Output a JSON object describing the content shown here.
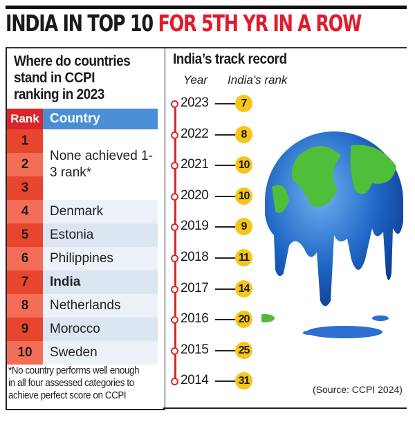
{
  "header": {
    "title_part1": "INDIA IN TOP 10",
    "title_part2": "FOR 5TH YR IN A ROW"
  },
  "left_panel": {
    "title": [
      "Where do countries",
      "stand in CCPI",
      "ranking in 2023"
    ],
    "columns": [
      "Rank",
      "Country"
    ],
    "none_note": "None achieved 1-3 rank*",
    "rows": [
      {
        "rank": "1"
      },
      {
        "rank": "2"
      },
      {
        "rank": "3"
      },
      {
        "rank": "4",
        "country": "Denmark"
      },
      {
        "rank": "5",
        "country": "Estonia"
      },
      {
        "rank": "6",
        "country": "Philippines"
      },
      {
        "rank": "7",
        "country": "India"
      },
      {
        "rank": "8",
        "country": "Netherlands"
      },
      {
        "rank": "9",
        "country": "Morocco"
      },
      {
        "rank": "10",
        "country": "Sweden"
      }
    ],
    "footnote": [
      "*No country performs well enough",
      "in all four assessed categories to",
      "achieve perfect score on CCPI"
    ]
  },
  "right_panel": {
    "title": "India’s track record",
    "source": "(Source: CCPI 2024)"
  },
  "chart_data": {
    "type": "table",
    "title": "India’s track record",
    "columns": [
      "Year",
      "India's rank"
    ],
    "x": [
      "2023",
      "2022",
      "2021",
      "2020",
      "2019",
      "2018",
      "2017",
      "2016",
      "2015",
      "2014"
    ],
    "values": [
      7,
      8,
      10,
      10,
      9,
      11,
      14,
      20,
      25,
      31
    ]
  },
  "colors": {
    "accent_red": "#e21b2c",
    "header_blue": "#4a8fd6",
    "badge_yellow": "#f5c518"
  }
}
